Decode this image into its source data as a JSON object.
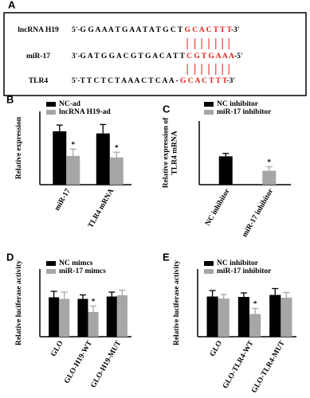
{
  "sequence_panel": {
    "label": "A",
    "rows": [
      {
        "name": "lncRNA H19",
        "prefix": "5'-G G A A A T G A A T A T G C T ",
        "match": "G C A C T T T",
        "suffix": "-3'"
      },
      {
        "name": "miR-17",
        "prefix": "3'-G A T G G A C G T G A C A T T ",
        "match": "C G T G A A A",
        "suffix": "-5'"
      },
      {
        "name": "TLR4",
        "prefix": "5'-T T C T C T A A A C T C A A - ",
        "match": "G C A C T T T",
        "suffix": "-3'"
      }
    ]
  },
  "chart_data": [
    {
      "type": "bar",
      "label": "B",
      "ylabel": [
        "Relative expression"
      ],
      "categories": [
        "miR-17",
        "TLR4 mRNA"
      ],
      "ylim": [
        0,
        1.4
      ],
      "series": [
        {
          "name": "NC-ad",
          "color": "#000000",
          "values": [
            1.02,
            0.98
          ],
          "errors": [
            0.12,
            0.17
          ],
          "significance": [
            null,
            null
          ]
        },
        {
          "name": "lncRNA H19-ad",
          "color": "#a6a6a6",
          "values": [
            0.55,
            0.52
          ],
          "errors": [
            0.13,
            0.1
          ],
          "significance": [
            "*",
            "*"
          ]
        }
      ]
    },
    {
      "type": "bar",
      "label": "C",
      "ylabel": [
        "Relative expression of",
        "TLR4 mRNA"
      ],
      "categories": [
        "NC inhibitor",
        "miR-17 inhibitor"
      ],
      "ylim": [
        0,
        2.2
      ],
      "series": [
        {
          "name": "NC inhibitor",
          "color": "#000000",
          "values": [
            0.98,
            null
          ],
          "errors": [
            0.1,
            null
          ],
          "significance": [
            null,
            null
          ]
        },
        {
          "name": "miR-17 inhibitor",
          "color": "#a6a6a6",
          "values": [
            null,
            0.48
          ],
          "errors": [
            null,
            0.14
          ],
          "significance": [
            null,
            "*"
          ]
        }
      ]
    },
    {
      "type": "bar",
      "label": "D",
      "ylabel": [
        "Relative luciferase activity"
      ],
      "categories": [
        "GLO",
        "GLO-H19-WT",
        "GLO-H19-MUT"
      ],
      "ylim": [
        0,
        1.7
      ],
      "series": [
        {
          "name": "NC mimcs",
          "color": "#000000",
          "values": [
            0.99,
            0.95,
            1.01
          ],
          "errors": [
            0.15,
            0.1,
            0.11
          ],
          "significance": [
            null,
            null,
            null
          ]
        },
        {
          "name": "miR-17 mimcs",
          "color": "#a6a6a6",
          "values": [
            0.95,
            0.62,
            1.04
          ],
          "errors": [
            0.17,
            0.15,
            0.13
          ],
          "significance": [
            null,
            "*",
            null
          ]
        }
      ]
    },
    {
      "type": "bar",
      "label": "E",
      "ylabel": [
        "Relative luciferase activity"
      ],
      "categories": [
        "GLO",
        "GLO-TLR4-WT",
        "GLO-TLR4-MUT"
      ],
      "ylim": [
        0,
        1.7
      ],
      "series": [
        {
          "name": "NC inhibitor",
          "color": "#000000",
          "values": [
            1.01,
            1.0,
            1.05
          ],
          "errors": [
            0.15,
            0.1,
            0.16
          ],
          "significance": [
            null,
            null,
            null
          ]
        },
        {
          "name": "miR-17 inhibitor",
          "color": "#a6a6a6",
          "values": [
            0.96,
            0.57,
            0.98
          ],
          "errors": [
            0.1,
            0.14,
            0.13
          ],
          "significance": [
            null,
            "*",
            null
          ]
        }
      ]
    }
  ]
}
